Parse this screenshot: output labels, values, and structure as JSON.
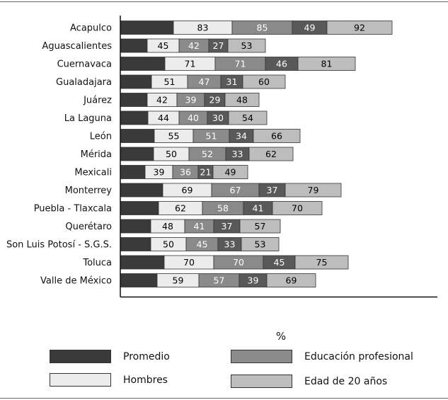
{
  "chart_data": {
    "type": "bar",
    "stacked": true,
    "orientation": "horizontal",
    "xlabel": "%",
    "categories": [
      "Acapulco",
      "Aguascalientes",
      "Cuernavaca",
      "Gualadajara",
      "Juárez",
      "La Laguna",
      "León",
      "Mérida",
      "Mexicali",
      "Monterrey",
      "Puebla - Tlaxcala",
      "Querétaro",
      "Son Luis Potosí - S.G.S.",
      "Toluca",
      "Valle de México"
    ],
    "series": [
      {
        "name": "Promedio",
        "color": "#3a3a3a",
        "label_color": "#000000",
        "values": [
          75,
          38,
          63,
          44,
          38,
          39,
          48,
          47,
          35,
          60,
          54,
          43,
          43,
          62,
          52
        ]
      },
      {
        "name": "Hombres",
        "color": "#ececec",
        "label_color": "#000000",
        "values": [
          83,
          45,
          71,
          51,
          42,
          44,
          55,
          50,
          39,
          69,
          62,
          48,
          50,
          70,
          59
        ]
      },
      {
        "name": "Educación profesional",
        "color": "#8a8a8a",
        "label_color": "#ffffff",
        "values": [
          85,
          42,
          71,
          47,
          39,
          40,
          51,
          52,
          36,
          67,
          58,
          41,
          45,
          70,
          57
        ]
      },
      {
        "name": "",
        "color": "#595959",
        "label_color": "#ffffff",
        "values": [
          49,
          27,
          46,
          31,
          29,
          30,
          34,
          33,
          21,
          37,
          41,
          37,
          33,
          45,
          39
        ]
      },
      {
        "name": "Edad de 20 años",
        "color": "#bdbdbd",
        "label_color": "#000000",
        "values": [
          92,
          53,
          81,
          60,
          48,
          54,
          66,
          62,
          49,
          79,
          70,
          57,
          53,
          75,
          69
        ]
      }
    ],
    "show_labels": [
      false,
      true,
      true,
      true,
      true
    ],
    "grid": false,
    "legend_position": "bottom"
  },
  "legend": {
    "items": [
      {
        "label": "Promedio",
        "color": "#3a3a3a"
      },
      {
        "label": "Educación profesional",
        "color": "#8a8a8a"
      },
      {
        "label": "Hombres",
        "color": "#ececec"
      },
      {
        "label": "Edad de 20 años",
        "color": "#bdbdbd"
      }
    ]
  }
}
